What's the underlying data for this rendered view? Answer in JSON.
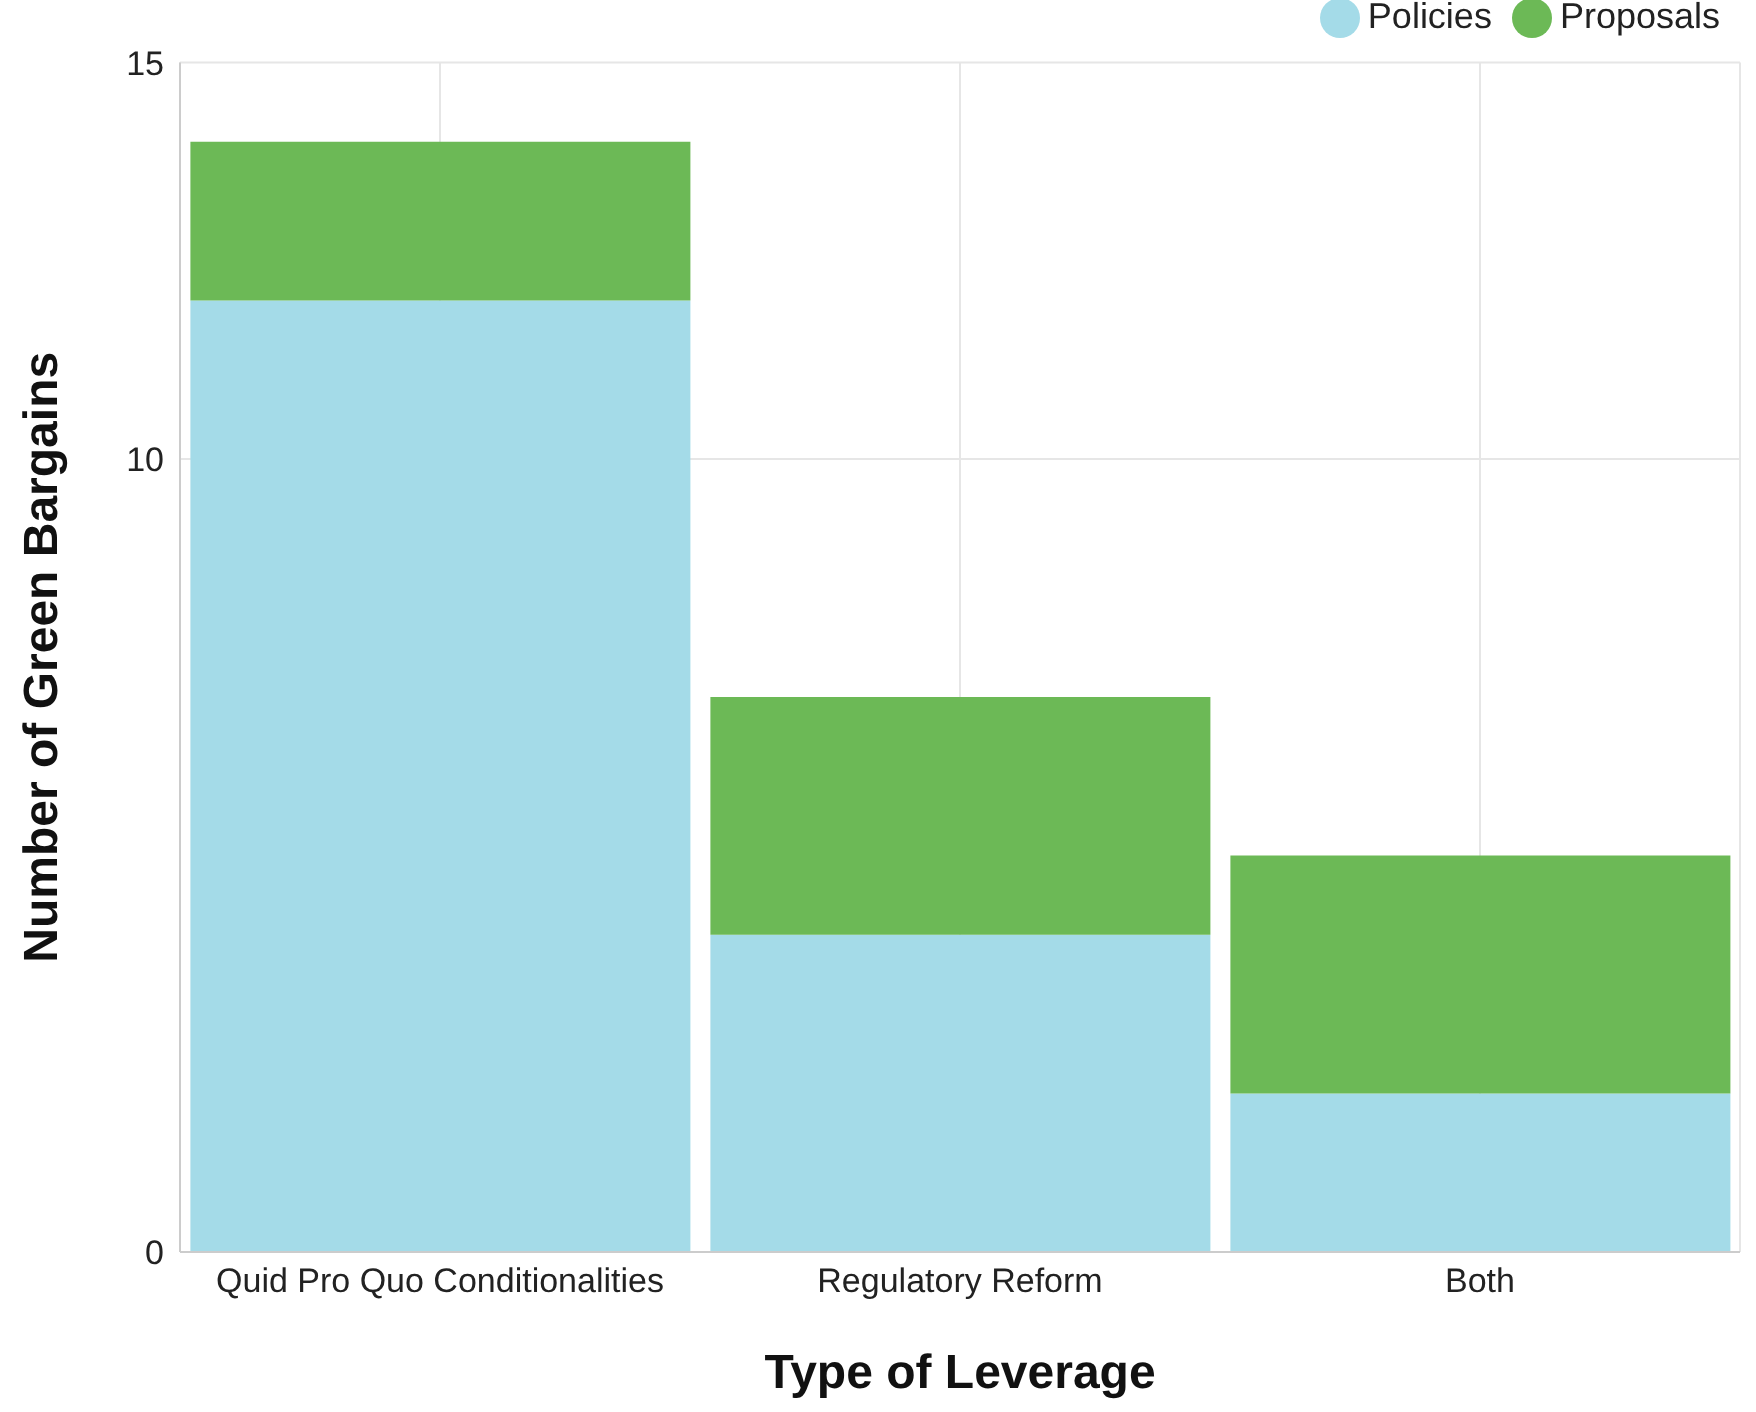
{
  "chart_data": {
    "type": "bar",
    "stacked": true,
    "xlabel": "Type of Leverage",
    "ylabel": "Number of Green Bargains",
    "categories": [
      "Quid Pro Quo Conditionalities",
      "Regulatory Reform",
      "Both"
    ],
    "series": [
      {
        "name": "Policies",
        "color": "#a4dbe8",
        "values": [
          12,
          4,
          2
        ]
      },
      {
        "name": "Proposals",
        "color": "#6cb956",
        "values": [
          2,
          3,
          3
        ]
      }
    ],
    "ylim": [
      0,
      15
    ],
    "yticks": [
      0,
      10,
      15
    ],
    "grid": true,
    "legend": "top right"
  }
}
